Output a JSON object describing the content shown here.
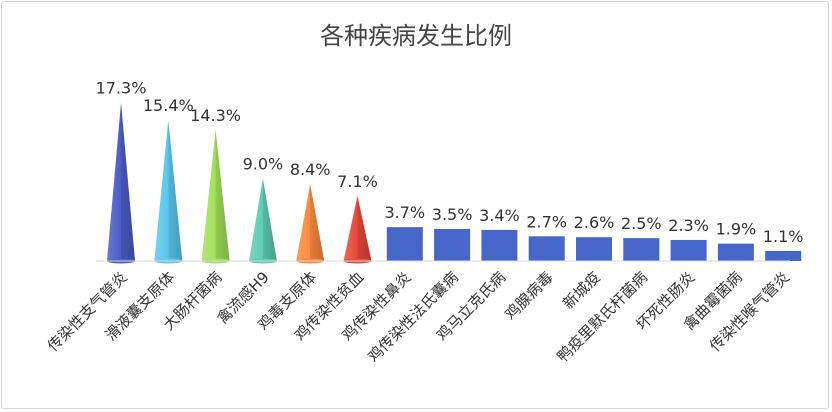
{
  "chart_data": {
    "type": "bar",
    "title": "各种疾病发生比例",
    "xlabel": "",
    "ylabel": "",
    "ylim": [
      0,
      18
    ],
    "grid": false,
    "legend": "none",
    "categories": [
      "传染性支气管炎",
      "滑液囊支原体",
      "大肠杆菌病",
      "禽流感H9",
      "鸡毒支原体",
      "鸡传染性贫血",
      "鸡传染性鼻炎",
      "鸡传染性法氏囊病",
      "鸡马立克氏病",
      "鸡腺病毒",
      "新城疫",
      "鸭疫里默氏杆菌病",
      "坏死性肠炎",
      "禽曲霉菌病",
      "传染性喉气管炎"
    ],
    "values": [
      17.3,
      15.4,
      14.3,
      9.0,
      8.4,
      7.1,
      3.7,
      3.5,
      3.4,
      2.7,
      2.6,
      2.5,
      2.3,
      1.9,
      1.1
    ],
    "data_labels": [
      "17.3%",
      "15.4%",
      "14.3%",
      "9.0%",
      "8.4%",
      "7.1%",
      "3.7%",
      "3.5%",
      "3.4%",
      "2.7%",
      "2.6%",
      "2.5%",
      "2.3%",
      "1.9%",
      "1.1%"
    ],
    "colors": [
      "#4a5cc8",
      "#59c8ee",
      "#a3e15a",
      "#5ccdb0",
      "#ff8a3d",
      "#e8473a",
      "#4766c9",
      "#4766c9",
      "#4766c9",
      "#4766c9",
      "#4766c9",
      "#4766c9",
      "#4766c9",
      "#4766c9",
      "#4766c9"
    ],
    "mark_shapes": [
      "cone",
      "cone",
      "cone",
      "cone",
      "cone",
      "cone",
      "bar",
      "bar",
      "bar",
      "bar",
      "bar",
      "bar",
      "bar",
      "bar",
      "bar"
    ]
  }
}
